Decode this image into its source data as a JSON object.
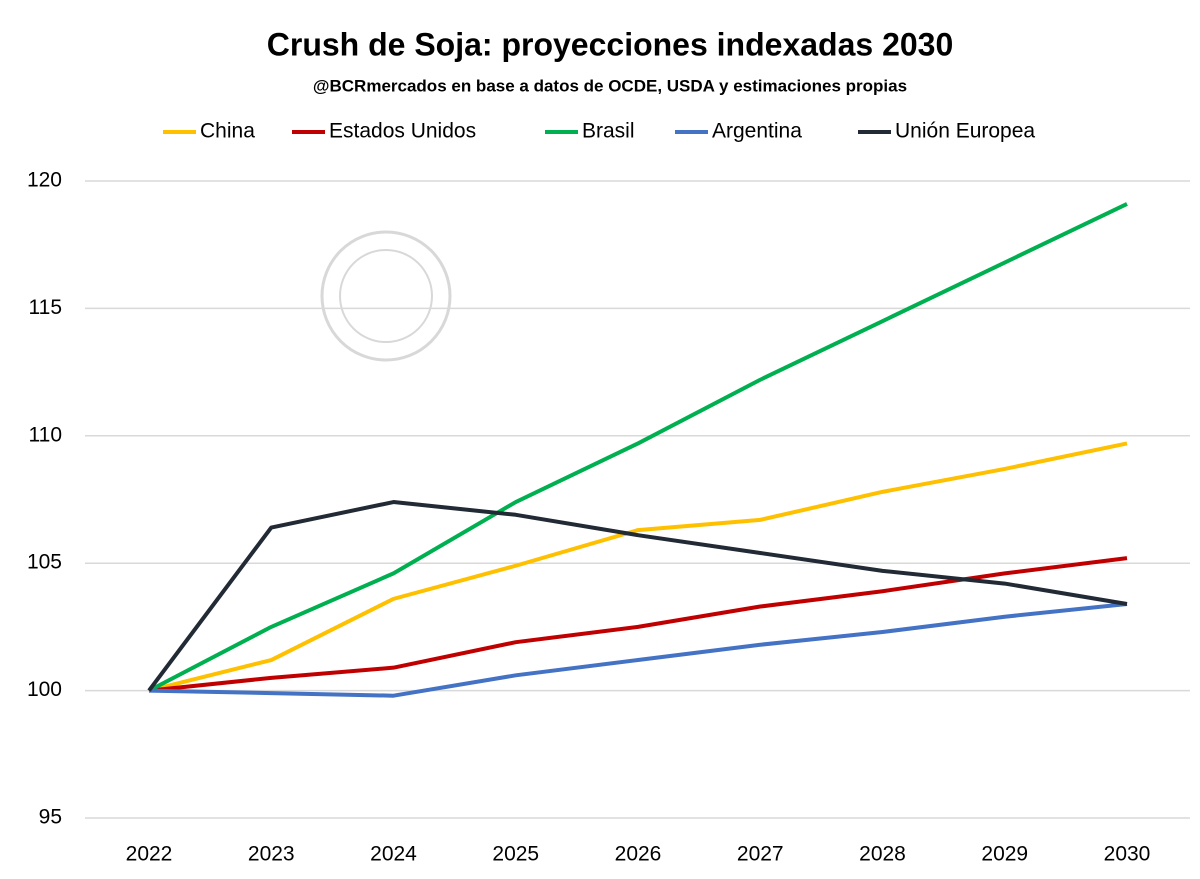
{
  "chart_data": {
    "type": "line",
    "title": "Crush de Soja: proyecciones indexadas 2030",
    "subtitle": "@BCRmercados en base a datos de OCDE, USDA y estimaciones propias",
    "categories": [
      "2022",
      "2023",
      "2024",
      "2025",
      "2026",
      "2027",
      "2028",
      "2029",
      "2030"
    ],
    "series": [
      {
        "name": "China",
        "color": "#ffc000",
        "values": [
          100,
          101.2,
          103.6,
          104.9,
          106.3,
          106.7,
          107.8,
          108.7,
          109.7
        ]
      },
      {
        "name": "Estados Unidos",
        "color": "#c00000",
        "values": [
          100,
          100.5,
          100.9,
          101.9,
          102.5,
          103.3,
          103.9,
          104.6,
          105.2
        ]
      },
      {
        "name": "Brasil",
        "color": "#00b050",
        "values": [
          100,
          102.5,
          104.6,
          107.4,
          109.7,
          112.2,
          114.5,
          116.8,
          119.1
        ]
      },
      {
        "name": "Argentina",
        "color": "#4472c4",
        "values": [
          100,
          99.9,
          99.8,
          100.6,
          101.2,
          101.8,
          102.3,
          102.9,
          103.4
        ]
      },
      {
        "name": "Unión Europea",
        "color": "#222a35",
        "values": [
          100,
          106.4,
          107.4,
          106.9,
          106.1,
          105.4,
          104.7,
          104.2,
          103.4
        ]
      }
    ],
    "ylim": [
      95,
      120
    ],
    "yticks": [
      95,
      100,
      105,
      110,
      115,
      120
    ],
    "grid": true,
    "legend": "top"
  }
}
